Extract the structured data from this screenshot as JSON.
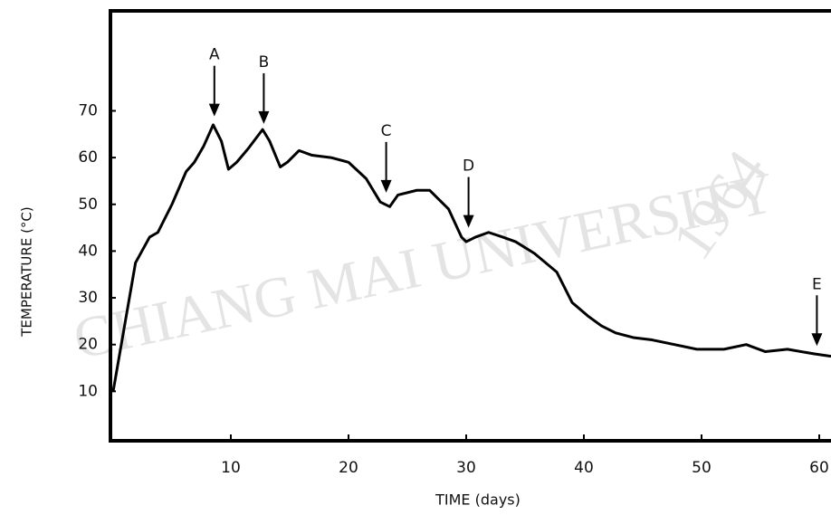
{
  "chart_data": {
    "type": "line",
    "watermark": [
      "CHIANG MAI UNIVERSITY",
      "1964"
    ],
    "xlabel": "TIME  (days)",
    "ylabel": "TEMPERATURE (°C)",
    "x": [
      0,
      1.9,
      3.1,
      3.8,
      5,
      6.2,
      6.9,
      7.7,
      8.5,
      9.2,
      9.8,
      10.5,
      11.5,
      12.7,
      13.3,
      14.2,
      14.8,
      15.8,
      16.9,
      18.5,
      20,
      21.5,
      22.7,
      23.5,
      24.2,
      25.8,
      26.9,
      28.5,
      29.6,
      30,
      30.8,
      31.9,
      33.1,
      34.2,
      35.8,
      37.7,
      39,
      40.4,
      41.5,
      42.7,
      44.2,
      45.8,
      47.7,
      49.6,
      51.9,
      53.8,
      55.4,
      57.3,
      59.6,
      61
    ],
    "series": [
      {
        "color": "#000000",
        "values": [
          10,
          37.5,
          43,
          44,
          50,
          57,
          59,
          62.5,
          67,
          63.5,
          57.5,
          59,
          62,
          66,
          63.5,
          58,
          59,
          61.5,
          60.5,
          60,
          59,
          55.5,
          50.5,
          49.5,
          52,
          53,
          53,
          49,
          43,
          42,
          43,
          44,
          43,
          42,
          39.5,
          35.5,
          29,
          26,
          24,
          22.5,
          21.5,
          21,
          20,
          19,
          19,
          20,
          18.5,
          19,
          18,
          17.5
        ]
      }
    ],
    "annotations": [
      {
        "label": "A",
        "x": 8.6,
        "y": 68.8
      },
      {
        "label": "B",
        "x": 12.8,
        "y": 67.2
      },
      {
        "label": "C",
        "x": 23.2,
        "y": 52.5
      },
      {
        "label": "D",
        "x": 30.2,
        "y": 45
      },
      {
        "label": "E",
        "x": 59.8,
        "y": 19.7
      }
    ],
    "xlim": [
      0,
      61
    ],
    "ylim": [
      0,
      91
    ],
    "xticks": [
      10,
      20,
      30,
      40,
      50,
      60
    ],
    "yticks": [
      10,
      20,
      30,
      40,
      50,
      60,
      70
    ]
  }
}
